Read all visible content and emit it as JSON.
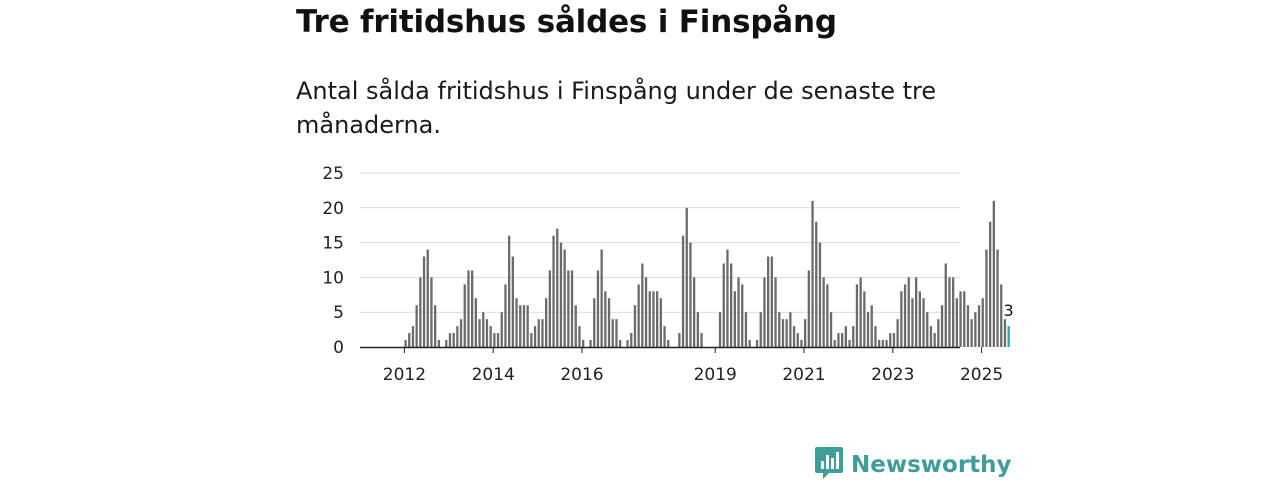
{
  "header": {
    "title": "Tre fritidshus såldes i Finspång",
    "subtitle": "Antal sålda fritidshus i Finspång under de senaste tre månaderna."
  },
  "brand": {
    "name": "Newsworthy",
    "color": "#3f9d9a",
    "icon": "newsworthy-logo-icon"
  },
  "chart_data": {
    "type": "bar",
    "yticks": [
      0,
      5,
      10,
      15,
      20,
      25
    ],
    "ylim": [
      0,
      25
    ],
    "xtick_labels": [
      {
        "label": "2012",
        "year": 2012
      },
      {
        "label": "2014",
        "year": 2014
      },
      {
        "label": "2016",
        "year": 2016
      },
      {
        "label": "2019",
        "year": 2019
      },
      {
        "label": "2021",
        "year": 2021
      },
      {
        "label": "2023",
        "year": 2023
      },
      {
        "label": "2025",
        "year": 2025
      }
    ],
    "bar_color": "#6b6b6b",
    "highlight_color": "#2aa8a8",
    "highlight_label": "3",
    "series": [
      {
        "year": 2011,
        "values": [
          0,
          0,
          0,
          0,
          0,
          0,
          0,
          0,
          0,
          0,
          0,
          0
        ]
      },
      {
        "year": 2012,
        "values": [
          1,
          2,
          3,
          6,
          10,
          13,
          14,
          10,
          6,
          1,
          0,
          1
        ]
      },
      {
        "year": 2013,
        "values": [
          2,
          2,
          3,
          4,
          9,
          11,
          11,
          7,
          4,
          5,
          4,
          3
        ]
      },
      {
        "year": 2014,
        "values": [
          2,
          2,
          5,
          9,
          16,
          13,
          7,
          6,
          6,
          6,
          2,
          3
        ]
      },
      {
        "year": 2015,
        "values": [
          4,
          4,
          7,
          11,
          16,
          17,
          15,
          14,
          11,
          11,
          6,
          3
        ]
      },
      {
        "year": 2016,
        "values": [
          1,
          0,
          1,
          7,
          11,
          14,
          8,
          7,
          4,
          4,
          1,
          0
        ]
      },
      {
        "year": 2017,
        "values": [
          1,
          2,
          6,
          9,
          12,
          10,
          8,
          8,
          8,
          7,
          3,
          1
        ]
      },
      {
        "year": 2018,
        "values": [
          0,
          0,
          2,
          16,
          20,
          15,
          10,
          5,
          2,
          0,
          0,
          0
        ]
      },
      {
        "year": 2019,
        "values": [
          0,
          5,
          12,
          14,
          12,
          8,
          10,
          9,
          5,
          1,
          0,
          1
        ]
      },
      {
        "year": 2020,
        "values": [
          5,
          10,
          13,
          13,
          10,
          5,
          4,
          4,
          5,
          3,
          2,
          1
        ]
      },
      {
        "year": 2021,
        "values": [
          4,
          11,
          21,
          18,
          15,
          10,
          9,
          5,
          1,
          2,
          2,
          3
        ]
      },
      {
        "year": 2022,
        "values": [
          1,
          3,
          9,
          10,
          8,
          5,
          6,
          3,
          1,
          1,
          1,
          2
        ]
      },
      {
        "year": 2023,
        "values": [
          2,
          4,
          8,
          9,
          10,
          7,
          10,
          8,
          7,
          5,
          3,
          2
        ]
      },
      {
        "year": 2024,
        "values": [
          4,
          6,
          12,
          10,
          10,
          7,
          8,
          8,
          6,
          4,
          5,
          6
        ]
      },
      {
        "year": 2025,
        "values": [
          7,
          14,
          18,
          21,
          14,
          9,
          4,
          3
        ]
      }
    ]
  }
}
